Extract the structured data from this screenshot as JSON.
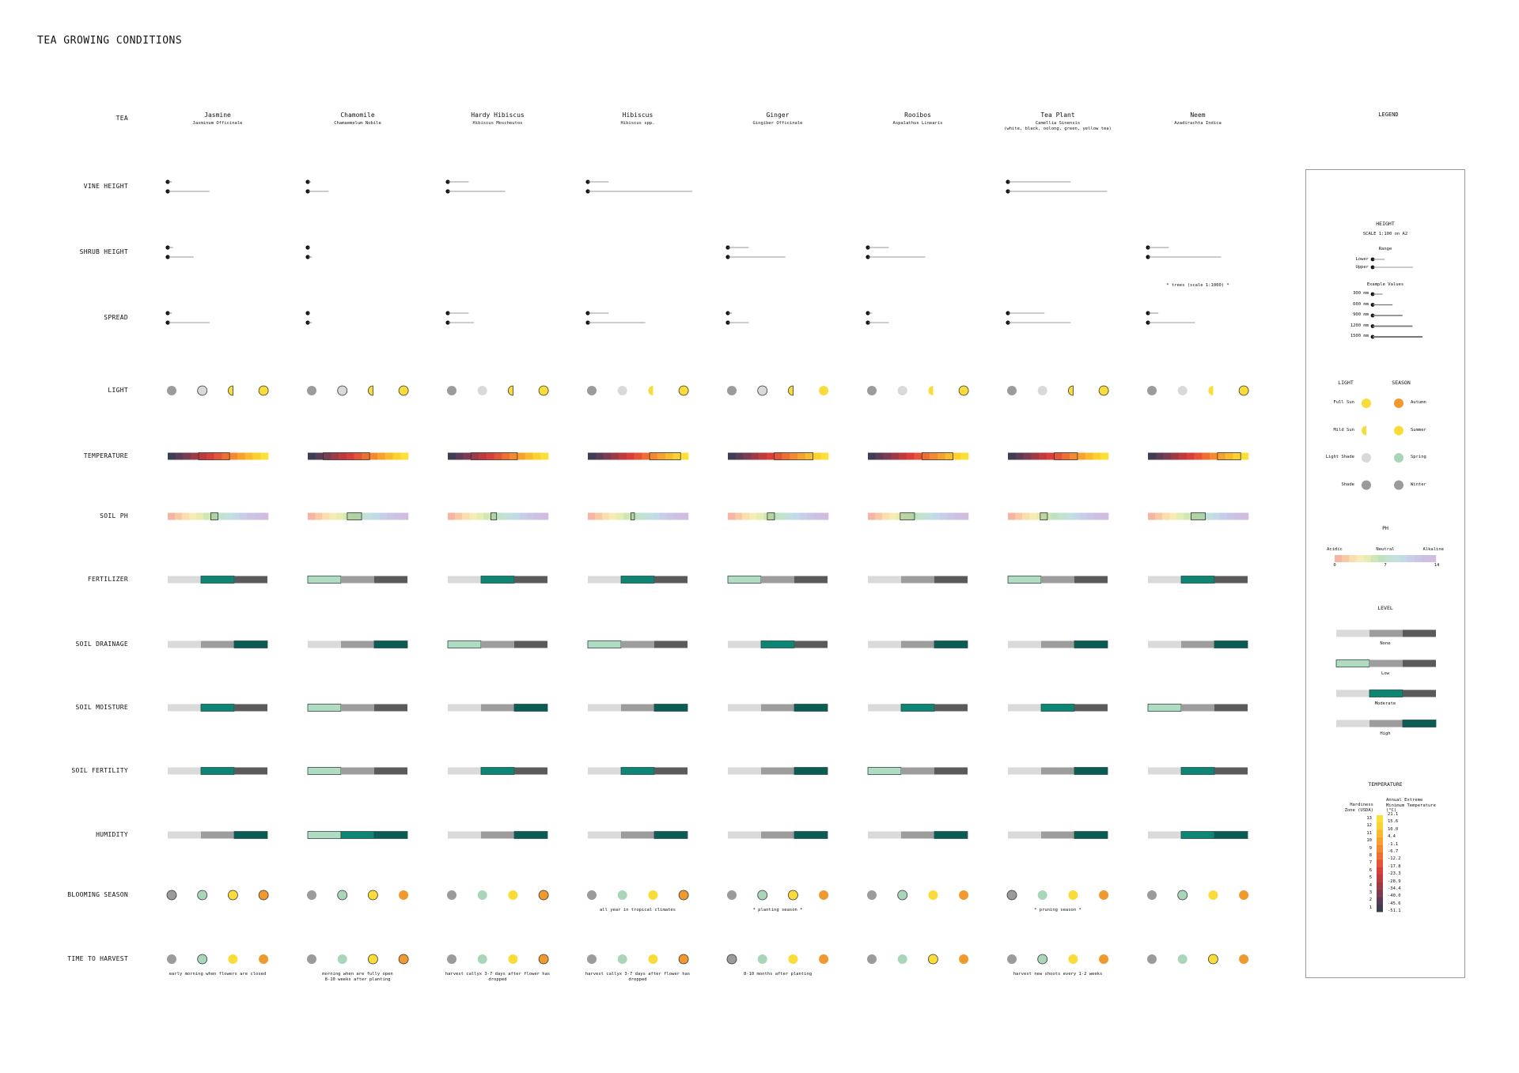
{
  "title": "TEA GROWING CONDITIONS",
  "row_labels": {
    "tea": "TEA",
    "vine": "VINE HEIGHT",
    "shrub": "SHRUB HEIGHT",
    "spread": "SPREAD",
    "light": "LIGHT",
    "temperature": "TEMPERATURE",
    "ph": "SOIL PH",
    "fertilizer": "FERTILIZER",
    "drainage": "SOIL DRAINAGE",
    "moisture": "SOIL MOISTURE",
    "fertility": "SOIL FERTILITY",
    "humidity": "HUMIDITY",
    "blooming": "BLOOMING SEASON",
    "harvest": "TIME TO HARVEST"
  },
  "legend_label": "LEGEND",
  "colors": {
    "full_sun": "#f9dc3a",
    "light_shade": "#d9d9d9",
    "shade": "#9b9b9b",
    "autumn": "#f0992f",
    "spring": "#a9d6b9",
    "winter": "#9b9b9b",
    "level_none": "#dadada",
    "level_low": "#9d9d9d",
    "level_high": "#5a5a5a",
    "teal": "#0c8575",
    "teal_dark": "#0b5c55",
    "mint": "#b1dcc2"
  },
  "teas": [
    {
      "name": "Jasmine",
      "sci": "Jasminum Officinale",
      "vine": [
        0.4,
        4
      ],
      "shrub": [
        0.5,
        2.5
      ],
      "spread": [
        0.4,
        4
      ],
      "light": [
        1,
        1,
        1,
        1
      ],
      "temp": [
        5,
        8
      ],
      "ph": [
        6,
        7
      ],
      "fertilizer": "moderate",
      "drainage": "high",
      "moisture": "moderate",
      "fertility": "moderate",
      "humidity": "high",
      "bloom": [
        1,
        1,
        1,
        1
      ],
      "bloom_note": "",
      "harvest": [
        0,
        1,
        0,
        0
      ],
      "harvest_note": "early morning when flowers are closed"
    },
    {
      "name": "Chamomile",
      "sci": "Chamaemelum Nobile",
      "vine": [
        0.3,
        2
      ],
      "shrub": [
        0.15,
        0.4
      ],
      "spread": [
        0.15,
        0.4
      ],
      "light": [
        1,
        1,
        1,
        1
      ],
      "temp": [
        3,
        8
      ],
      "ph": [
        5.5,
        7.5
      ],
      "fertilizer": "low",
      "drainage": "high",
      "moisture": "low",
      "fertility": "low",
      "humidity": "low-moderate-high",
      "bloom": [
        0,
        1,
        1,
        0
      ],
      "bloom_note": "",
      "harvest": [
        0,
        0,
        1,
        1
      ],
      "harvest_note": "morning when are fully open\n8-10 weeks after planting"
    },
    {
      "name": "Hardy Hibiscus",
      "sci": "Hibiscus Moscheutos",
      "vine": [
        2,
        5.5
      ],
      "shrub": null,
      "spread": [
        2,
        2.5
      ],
      "light": [
        0,
        0,
        1,
        1
      ],
      "temp": [
        4,
        9
      ],
      "ph": [
        6,
        6.8
      ],
      "fertilizer": "moderate",
      "drainage": "low",
      "moisture": "high",
      "fertility": "moderate",
      "humidity": "high",
      "bloom": [
        0,
        0,
        0,
        1
      ],
      "bloom_note": "",
      "harvest": [
        0,
        0,
        0,
        1
      ],
      "harvest_note": "harvest callyx 3-7 days after flower has\ndropped"
    },
    {
      "name": "Hibiscus",
      "sci": "Hibiscus spp.",
      "vine": [
        2,
        10
      ],
      "shrub": null,
      "spread": [
        2,
        5.5
      ],
      "light": [
        0,
        0,
        0,
        1
      ],
      "temp": [
        9,
        12
      ],
      "ph": [
        6,
        6.5
      ],
      "fertilizer": "moderate",
      "drainage": "low",
      "moisture": "high",
      "fertility": "moderate",
      "humidity": "high",
      "bloom": [
        0,
        0,
        0,
        1
      ],
      "bloom_note": "all year in tropical climates",
      "harvest": [
        0,
        0,
        0,
        1
      ],
      "harvest_note": "harvest callyx 3-7 days after flower has\ndropped"
    },
    {
      "name": "Ginger",
      "sci": "Gingiber Officinale",
      "vine": null,
      "shrub": [
        2,
        5.5
      ],
      "spread": [
        0.4,
        2
      ],
      "light": [
        1,
        1,
        1,
        0
      ],
      "temp": [
        7,
        11
      ],
      "ph": [
        5.5,
        6.5
      ],
      "fertilizer": "low",
      "drainage": "moderate",
      "moisture": "high",
      "fertility": "high",
      "humidity": "high",
      "bloom": [
        0,
        1,
        1,
        0
      ],
      "bloom_note": "* planting season *",
      "harvest": [
        1,
        0,
        0,
        0
      ],
      "harvest_note": "8-10 months after planting"
    },
    {
      "name": "Rooibos",
      "sci": "Aspalathus Linearis",
      "vine": null,
      "shrub": [
        2,
        5.5
      ],
      "spread": [
        0.4,
        2
      ],
      "light": [
        0,
        0,
        0,
        1
      ],
      "temp": [
        8,
        11
      ],
      "ph": [
        4.5,
        6.5
      ],
      "fertilizer": "none",
      "drainage": "high",
      "moisture": "moderate",
      "fertility": "low",
      "humidity": "high",
      "bloom": [
        0,
        1,
        0,
        0
      ],
      "bloom_note": "",
      "harvest": [
        0,
        0,
        1,
        0
      ],
      "harvest_note": ""
    },
    {
      "name": "Tea Plant",
      "sci": "Camellia Sinensis\n(white, black, oolong, green, yellow tea)",
      "vine": [
        6,
        9.5
      ],
      "shrub": null,
      "spread": [
        3.5,
        6
      ],
      "light": [
        0,
        0,
        1,
        1
      ],
      "temp": [
        7,
        9
      ],
      "ph": [
        4.5,
        5.5
      ],
      "fertilizer": "low",
      "drainage": "high",
      "moisture": "moderate",
      "fertility": "high",
      "humidity": "high",
      "bloom": [
        1,
        0,
        0,
        0
      ],
      "bloom_note": "* pruning season *",
      "harvest": [
        0,
        1,
        0,
        0
      ],
      "harvest_note": "harvest new shoots every 1-2 weeks"
    },
    {
      "name": "Neem",
      "sci": "Azadirachta Indica",
      "vine": null,
      "shrub": [
        2,
        7
      ],
      "spread": [
        1,
        4.5
      ],
      "light": [
        0,
        0,
        0,
        1
      ],
      "temp": [
        10,
        12
      ],
      "ph": [
        6,
        8
      ],
      "fertilizer": "moderate",
      "drainage": "high",
      "moisture": "low",
      "fertility": "moderate",
      "humidity": "moderate-high",
      "bloom": [
        0,
        1,
        0,
        0
      ],
      "bloom_note": "",
      "harvest": [
        0,
        0,
        1,
        0
      ],
      "harvest_note": "",
      "neem_note": "* trees (scale 1:1000) *"
    }
  ],
  "legend": {
    "height": {
      "title": "HEIGHT",
      "scale": "SCALE 1:100 on A2",
      "range": "Range",
      "lower": "Lower",
      "upper": "Upper",
      "examples_title": "Example Values",
      "examples": [
        {
          "label": "300 mm",
          "v": 0.3
        },
        {
          "label": "600 mm",
          "v": 0.6
        },
        {
          "label": "900 mm",
          "v": 0.9
        },
        {
          "label": "1200 mm",
          "v": 1.2
        },
        {
          "label": "1500 mm",
          "v": 1.5
        }
      ]
    },
    "light_title": "LIGHT",
    "season_title": "SEASON",
    "light_items": [
      "Full Sun",
      "Mild Sun",
      "Light Shade",
      "Shade"
    ],
    "season_items": [
      "Autumn",
      "Summer",
      "Spring",
      "Winter"
    ],
    "ph": {
      "title": "PH",
      "acidic": "Acidic",
      "neutral": "Neutral",
      "alkaline": "Alkaline",
      "min": "0",
      "mid": "7",
      "max": "14"
    },
    "level": {
      "title": "LEVEL",
      "items": [
        "None",
        "Low",
        "Moderate",
        "High"
      ]
    },
    "temperature": {
      "title": "TEMPERATURE",
      "zone_label": "Hardiness\nZone (USDA)",
      "temp_label": "Annual Extreme\nMinimum Temperature\n(°C)",
      "zones": [
        "13",
        "12",
        "11",
        "10",
        "9",
        "8",
        "7",
        "6",
        "5",
        "4",
        "3",
        "2",
        "1"
      ],
      "temps": [
        "21.1",
        "15.6",
        "10.0",
        "4.4",
        "-1.1",
        "-6.7",
        "-12.2",
        "-17.8",
        "-23.3",
        "-28.9",
        "-34.4",
        "-40.0",
        "-45.6",
        "-51.1"
      ]
    }
  }
}
